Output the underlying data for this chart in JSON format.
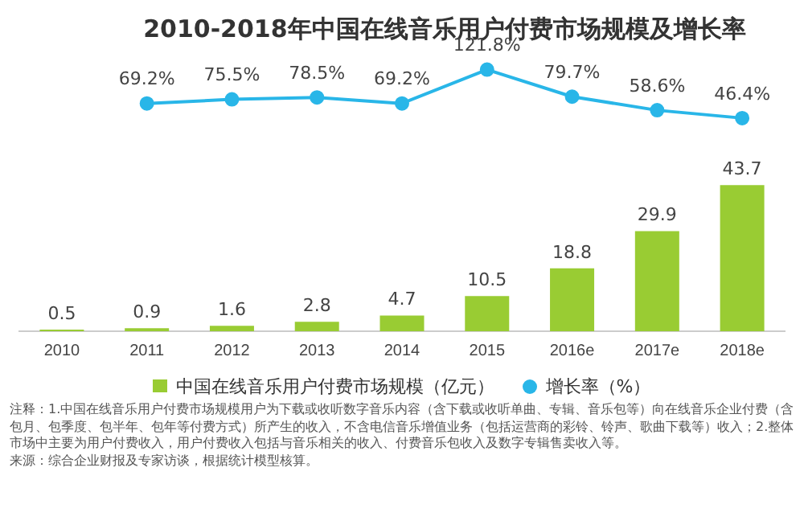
{
  "chart_data": [
    {
      "type": "line",
      "title": "2010-2018年中国在线音乐用户付费市场规模及增长率",
      "categories": [
        null,
        null,
        null,
        null,
        null,
        null,
        null,
        null
      ],
      "series": [
        {
          "name": "增长率（%）",
          "color": "#29b6e8",
          "values": [
            69.2,
            75.5,
            78.5,
            69.2,
            121.8,
            79.7,
            58.6,
            46.4
          ],
          "value_labels": [
            "69.2%",
            "75.5%",
            "78.5%",
            "69.2%",
            "121.8%",
            "79.7%",
            "58.6%",
            "46.4%"
          ]
        }
      ],
      "tick_labels": false,
      "legend": "bottom",
      "marker": "circle"
    },
    {
      "type": "bar",
      "categories": [
        "2010",
        "2011",
        "2012",
        "2013",
        "2014",
        "2015",
        "2016e",
        "2017e",
        "2018e"
      ],
      "series": [
        {
          "name": "中国在线音乐用户付费市场规模（亿元）",
          "color": "#99cc33",
          "values": [
            0.5,
            0.9,
            1.6,
            2.8,
            4.7,
            10.5,
            18.8,
            29.9,
            43.7
          ]
        }
      ],
      "data_labels": true,
      "tick_labels": "x",
      "legend": "bottom",
      "annotations": [
        "注释：1.中国在线音乐用户付费市场规模用户为下载或收听数字音乐内容（含下载或收听单曲、专辑、音乐包等）向在线音乐企业付费（含包月、包季度、包半年、包年等付费方式）所产生的收入，不含电信音乐增值业务（包括运营商的彩铃、铃声、歌曲下载等）收入；2.整体市场中主要为用户付费收入，用户付费收入包括与音乐相关的收入、付费音乐包收入及数字专辑售卖收入等。",
        "来源：综合企业财报及专家访谈，根据统计模型核算。"
      ]
    }
  ]
}
